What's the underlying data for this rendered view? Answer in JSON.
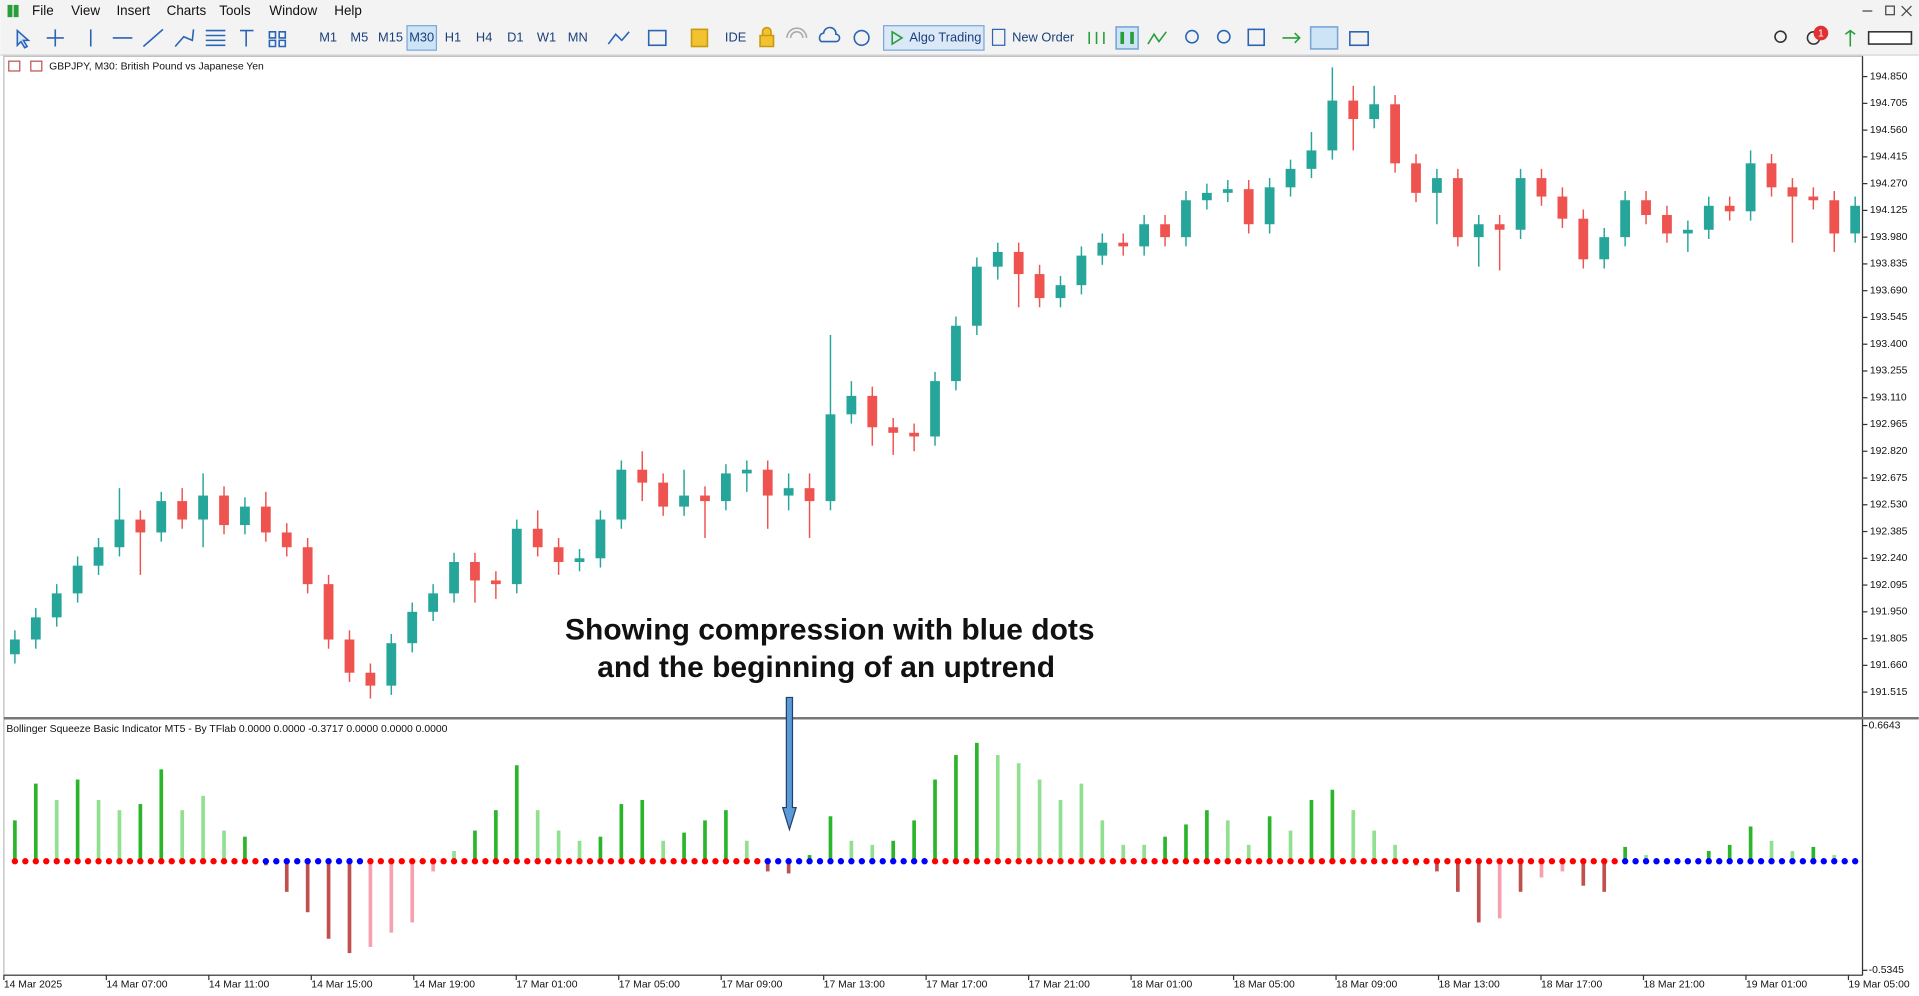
{
  "menu": [
    "File",
    "View",
    "Insert",
    "Charts",
    "Tools",
    "Window",
    "Help"
  ],
  "toolbar": {
    "timeframes": [
      "M1",
      "M5",
      "M15",
      "M30",
      "H1",
      "H4",
      "D1",
      "W1",
      "MN"
    ],
    "active_timeframe": "M30",
    "ide": "IDE",
    "algo_trading": "Algo Trading",
    "new_order": "New Order",
    "notification_count": 1
  },
  "annotation": [
    "Showing compression with blue dots",
    "and the beginning of an uptrend"
  ],
  "time_axis": [
    "14 Mar 2025",
    "14 Mar 07:00",
    "14 Mar 11:00",
    "14 Mar 15:00",
    "14 Mar 19:00",
    "17 Mar 01:00",
    "17 Mar 05:00",
    "17 Mar 09:00",
    "17 Mar 13:00",
    "17 Mar 17:00",
    "17 Mar 21:00",
    "18 Mar 01:00",
    "18 Mar 05:00",
    "18 Mar 09:00",
    "18 Mar 13:00",
    "18 Mar 17:00",
    "18 Mar 21:00",
    "19 Mar 01:00",
    "19 Mar 05:00"
  ],
  "chart_data": [
    {
      "type": "candlestick",
      "title": "GBPJPY, M30:  British Pound vs Japanese Yen",
      "up_color": "#26a69a",
      "down_color": "#ef5350",
      "open": [
        191.72,
        191.8,
        191.92,
        192.05,
        192.2,
        192.3,
        192.45,
        192.38,
        192.55,
        192.45,
        192.58,
        192.42,
        192.52,
        192.38,
        192.3,
        192.1,
        191.8,
        191.62,
        191.55,
        191.78,
        191.95,
        192.05,
        192.22,
        192.12,
        192.1,
        192.4,
        192.3,
        192.22,
        192.24,
        192.45,
        192.72,
        192.65,
        192.52,
        192.58,
        192.55,
        192.7,
        192.72,
        192.58,
        192.62,
        192.55,
        193.02,
        193.12,
        192.95,
        192.92,
        192.9,
        193.2,
        193.5,
        193.82,
        193.9,
        193.78,
        193.65,
        193.72,
        193.88,
        193.95,
        193.93,
        194.05,
        193.98,
        194.18,
        194.22,
        194.24,
        194.05,
        194.25,
        194.35,
        194.45,
        194.72,
        194.62,
        194.7,
        194.38,
        194.22,
        194.3,
        193.98,
        194.05,
        194.02,
        194.3,
        194.2,
        194.08,
        193.86,
        193.98,
        194.18,
        194.1,
        194.0,
        194.02,
        194.15,
        194.12,
        194.38,
        194.25,
        194.2,
        194.18,
        194.0
      ],
      "high": [
        191.85,
        191.97,
        192.1,
        192.25,
        192.35,
        192.62,
        192.5,
        192.6,
        192.62,
        192.7,
        192.63,
        192.57,
        192.6,
        192.43,
        192.35,
        192.15,
        191.85,
        191.67,
        191.83,
        192.0,
        192.1,
        192.27,
        192.27,
        192.17,
        192.45,
        192.5,
        192.35,
        192.29,
        192.5,
        192.77,
        192.82,
        192.7,
        192.72,
        192.63,
        192.75,
        192.77,
        192.77,
        192.7,
        192.7,
        193.45,
        193.2,
        193.17,
        193.0,
        192.97,
        193.25,
        193.55,
        193.87,
        193.95,
        193.95,
        193.83,
        193.77,
        193.93,
        194.0,
        194.0,
        194.1,
        194.1,
        194.23,
        194.27,
        194.29,
        194.29,
        194.3,
        194.4,
        194.55,
        194.9,
        194.8,
        194.8,
        194.75,
        194.43,
        194.35,
        194.35,
        194.1,
        194.1,
        194.35,
        194.35,
        194.25,
        194.13,
        194.03,
        194.23,
        194.23,
        194.15,
        194.07,
        194.2,
        194.2,
        194.45,
        194.43,
        194.3,
        194.25,
        194.23,
        194.2
      ],
      "low": [
        191.67,
        191.75,
        191.87,
        192.0,
        192.15,
        192.25,
        192.15,
        192.33,
        192.4,
        192.3,
        192.37,
        192.37,
        192.33,
        192.25,
        192.05,
        191.75,
        191.57,
        191.48,
        191.5,
        191.73,
        191.9,
        192.0,
        192.0,
        192.02,
        192.05,
        192.25,
        192.15,
        192.17,
        192.19,
        192.4,
        192.55,
        192.47,
        192.47,
        192.35,
        192.5,
        192.6,
        192.4,
        192.5,
        192.35,
        192.5,
        192.97,
        192.85,
        192.8,
        192.82,
        192.85,
        193.15,
        193.45,
        193.75,
        193.6,
        193.6,
        193.6,
        193.67,
        193.83,
        193.88,
        193.88,
        193.93,
        193.93,
        194.13,
        194.17,
        194.0,
        194.0,
        194.2,
        194.3,
        194.4,
        194.45,
        194.57,
        194.33,
        194.17,
        194.05,
        193.93,
        193.82,
        193.8,
        193.97,
        194.15,
        194.03,
        193.81,
        193.81,
        193.93,
        194.05,
        193.95,
        193.9,
        193.97,
        194.07,
        194.07,
        194.2,
        193.95,
        194.13,
        193.9,
        193.95
      ],
      "close": [
        191.8,
        191.92,
        192.05,
        192.2,
        192.3,
        192.45,
        192.38,
        192.55,
        192.45,
        192.58,
        192.42,
        192.52,
        192.38,
        192.3,
        192.1,
        191.8,
        191.62,
        191.55,
        191.78,
        191.95,
        192.05,
        192.22,
        192.12,
        192.1,
        192.4,
        192.3,
        192.22,
        192.24,
        192.45,
        192.72,
        192.65,
        192.52,
        192.58,
        192.55,
        192.7,
        192.72,
        192.58,
        192.62,
        192.55,
        193.02,
        193.12,
        192.95,
        192.92,
        192.9,
        193.2,
        193.5,
        193.82,
        193.9,
        193.78,
        193.65,
        193.72,
        193.88,
        193.95,
        193.93,
        194.05,
        193.98,
        194.18,
        194.22,
        194.24,
        194.05,
        194.25,
        194.35,
        194.45,
        194.72,
        194.62,
        194.7,
        194.38,
        194.22,
        194.3,
        193.98,
        194.05,
        194.02,
        194.3,
        194.2,
        194.08,
        193.86,
        193.98,
        194.18,
        194.1,
        194.0,
        194.02,
        194.15,
        194.12,
        194.38,
        194.25,
        194.2,
        194.18,
        194.0,
        194.15
      ],
      "ylim": [
        191.38,
        194.96
      ],
      "yticks": [
        {
          "value": 194.85,
          "label": "194.850"
        },
        194.705,
        {
          "value": 194.56,
          "label": "194.560"
        },
        194.415,
        {
          "value": 194.27,
          "label": "194.270"
        },
        194.125,
        {
          "value": 193.98,
          "label": "193.980"
        },
        193.835,
        {
          "value": 193.69,
          "label": "193.690"
        },
        193.545,
        {
          "value": 193.4,
          "label": "193.400"
        },
        193.255,
        {
          "value": 193.11,
          "label": "193.110"
        },
        192.965,
        {
          "value": 192.82,
          "label": "192.820"
        },
        192.675,
        {
          "value": 192.53,
          "label": "192.530"
        },
        192.385,
        {
          "value": 192.24,
          "label": "192.240"
        },
        192.095,
        {
          "value": 191.95,
          "label": "191.950"
        },
        191.805,
        {
          "value": 191.66,
          "label": "191.660"
        },
        191.515
      ]
    },
    {
      "type": "bar",
      "title": "Bollinger Squeeze Basic Indicator MT5 - By TFlab 0.0000 0.0000 -0.3717 0.0000 0.0000 0.0000",
      "values": [
        0.2,
        0.38,
        0.3,
        0.4,
        0.3,
        0.25,
        0.28,
        0.45,
        0.25,
        0.32,
        0.15,
        0.12,
        -0.02,
        -0.15,
        -0.25,
        -0.38,
        -0.45,
        -0.42,
        -0.35,
        -0.3,
        -0.05,
        0.05,
        0.15,
        0.25,
        0.47,
        0.25,
        0.15,
        0.1,
        0.12,
        0.28,
        0.3,
        0.1,
        0.14,
        0.2,
        0.25,
        0.1,
        -0.05,
        -0.06,
        0.03,
        0.22,
        0.1,
        0.08,
        0.1,
        0.2,
        0.4,
        0.52,
        0.58,
        0.52,
        0.48,
        0.4,
        0.3,
        0.38,
        0.2,
        0.08,
        0.08,
        0.12,
        0.18,
        0.25,
        0.2,
        0.08,
        0.22,
        0.15,
        0.3,
        0.35,
        0.25,
        0.15,
        0.08,
        -0.02,
        -0.05,
        -0.15,
        -0.3,
        -0.28,
        -0.15,
        -0.08,
        -0.05,
        -0.12,
        -0.15,
        0.07,
        0.03,
        0,
        0,
        0.05,
        0.08,
        0.17,
        0.1,
        0.05,
        0.07,
        0.03,
        0
      ],
      "colors": [
        "#2ab52a",
        "#2ab52a",
        "#90e090",
        "#2ab52a",
        "#90e090",
        "#90e090",
        "#2ab52a",
        "#2ab52a",
        "#90e090",
        "#90e090",
        "#90e090",
        "#2ab52a",
        "#c0504d",
        "#c0504d",
        "#c0504d",
        "#c0504d",
        "#c0504d",
        "#f7a1b0",
        "#f7a1b0",
        "#f7a1b0",
        "#f7a1b0",
        "#90e090",
        "#2ab52a",
        "#2ab52a",
        "#2ab52a",
        "#90e090",
        "#90e090",
        "#90e090",
        "#2ab52a",
        "#2ab52a",
        "#2ab52a",
        "#90e090",
        "#2ab52a",
        "#2ab52a",
        "#2ab52a",
        "#90e090",
        "#c0504d",
        "#c0504d",
        "#2ab52a",
        "#2ab52a",
        "#90e090",
        "#90e090",
        "#2ab52a",
        "#2ab52a",
        "#2ab52a",
        "#2ab52a",
        "#2ab52a",
        "#90e090",
        "#90e090",
        "#90e090",
        "#90e090",
        "#90e090",
        "#90e090",
        "#90e090",
        "#90e090",
        "#2ab52a",
        "#2ab52a",
        "#2ab52a",
        "#90e090",
        "#90e090",
        "#2ab52a",
        "#90e090",
        "#2ab52a",
        "#2ab52a",
        "#90e090",
        "#90e090",
        "#90e090",
        "#c0504d",
        "#c0504d",
        "#c0504d",
        "#c0504d",
        "#f7a1b0",
        "#c0504d",
        "#f7a1b0",
        "#f7a1b0",
        "#c0504d",
        "#c0504d",
        "#2ab52a",
        "#90e090",
        "#90e090",
        "#90e090",
        "#2ab52a",
        "#2ab52a",
        "#2ab52a",
        "#90e090",
        "#90e090",
        "#2ab52a",
        "#90e090",
        "#90e090"
      ],
      "dot_colors": [
        "#ff0000",
        "#ff0000",
        "#ff0000",
        "#ff0000",
        "#ff0000",
        "#ff0000",
        "#ff0000",
        "#ff0000",
        "#ff0000",
        "#ff0000",
        "#ff0000",
        "#ff0000",
        "#0000ff",
        "#0000ff",
        "#0000ff",
        "#0000ff",
        "#0000ff",
        "#ff0000",
        "#ff0000",
        "#ff0000",
        "#ff0000",
        "#ff0000",
        "#ff0000",
        "#ff0000",
        "#ff0000",
        "#ff0000",
        "#ff0000",
        "#ff0000",
        "#ff0000",
        "#ff0000",
        "#ff0000",
        "#ff0000",
        "#ff0000",
        "#ff0000",
        "#ff0000",
        "#ff0000",
        "#0000ff",
        "#0000ff",
        "#0000ff",
        "#0000ff",
        "#0000ff",
        "#0000ff",
        "#0000ff",
        "#0000ff",
        "#ff0000",
        "#ff0000",
        "#ff0000",
        "#ff0000",
        "#ff0000",
        "#ff0000",
        "#ff0000",
        "#ff0000",
        "#ff0000",
        "#ff0000",
        "#ff0000",
        "#ff0000",
        "#ff0000",
        "#ff0000",
        "#ff0000",
        "#ff0000",
        "#ff0000",
        "#ff0000",
        "#ff0000",
        "#ff0000",
        "#ff0000",
        "#ff0000",
        "#ff0000",
        "#ff0000",
        "#ff0000",
        "#ff0000",
        "#ff0000",
        "#ff0000",
        "#ff0000",
        "#ff0000",
        "#ff0000",
        "#ff0000",
        "#ff0000",
        "#0000ff",
        "#0000ff",
        "#0000ff",
        "#0000ff",
        "#0000ff",
        "#0000ff",
        "#0000ff",
        "#0000ff",
        "#0000ff",
        "#0000ff",
        "#0000ff",
        "#0000ff"
      ],
      "ylim": [
        -0.5345,
        0.6643
      ],
      "yticks": [
        0.6643,
        -0.5345
      ]
    }
  ]
}
